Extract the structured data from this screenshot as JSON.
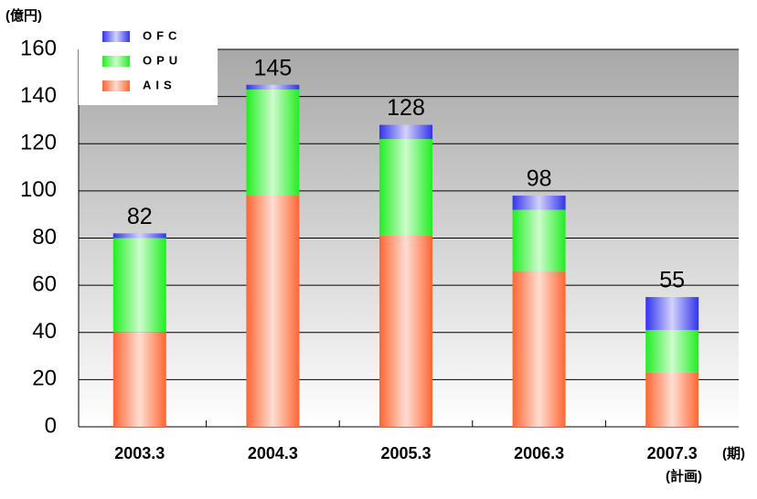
{
  "chart_data": {
    "type": "stacked_bar",
    "y_unit": "(億円)",
    "x_unit": "(期)",
    "annotation": "(計画)",
    "categories": [
      "2003.3",
      "2004.3",
      "2005.3",
      "2006.3",
      "2007.3"
    ],
    "series": [
      {
        "name": "AIS",
        "color": "#ff6633",
        "values": [
          40,
          98,
          81,
          66,
          23
        ]
      },
      {
        "name": "OPU",
        "color": "#22ee22",
        "values": [
          40,
          45,
          41,
          26,
          18
        ]
      },
      {
        "name": "OFC",
        "color": "#3333ee",
        "values": [
          2,
          2,
          6,
          6,
          14
        ]
      }
    ],
    "totals": [
      82,
      145,
      128,
      98,
      55
    ],
    "ylim": [
      0,
      160
    ],
    "yticks": [
      0,
      20,
      40,
      60,
      80,
      100,
      120,
      140,
      160
    ],
    "grid": true
  }
}
